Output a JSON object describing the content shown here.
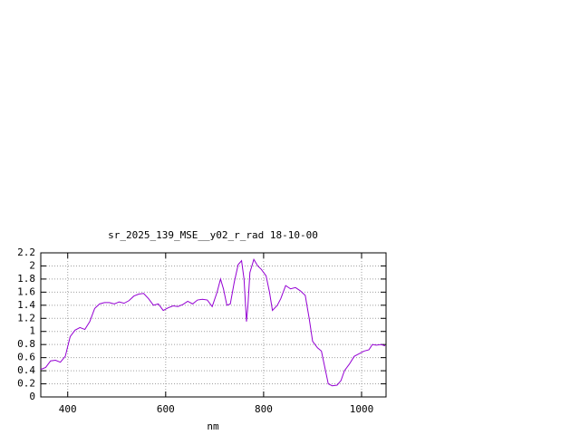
{
  "chart_data": {
    "type": "line",
    "title": "sr_2025_139_MSE__y02_r_rad 18-10-00",
    "x_label": "nm",
    "color": "#9400d3",
    "grid": true,
    "xlim": [
      345,
      1050
    ],
    "ylim": [
      0,
      2.2
    ],
    "xticks": [
      400,
      600,
      800,
      1000
    ],
    "yticks": [
      0,
      0.2,
      0.4,
      0.6,
      0.8,
      1,
      1.2,
      1.4,
      1.6,
      1.8,
      2,
      2.2
    ],
    "x": [
      345,
      355,
      365,
      375,
      385,
      395,
      405,
      415,
      425,
      435,
      445,
      455,
      465,
      475,
      485,
      495,
      505,
      515,
      525,
      535,
      545,
      555,
      565,
      575,
      585,
      595,
      605,
      615,
      625,
      635,
      645,
      655,
      665,
      675,
      685,
      695,
      705,
      712,
      718,
      725,
      732,
      740,
      748,
      755,
      760,
      765,
      768,
      772,
      780,
      788,
      795,
      805,
      812,
      818,
      828,
      835,
      845,
      855,
      865,
      875,
      885,
      893,
      900,
      910,
      918,
      925,
      932,
      940,
      950,
      958,
      965,
      975,
      985,
      995,
      1005,
      1015,
      1022,
      1030,
      1040,
      1048
    ],
    "values": [
      0.42,
      0.45,
      0.55,
      0.56,
      0.53,
      0.62,
      0.92,
      1.02,
      1.06,
      1.03,
      1.15,
      1.35,
      1.42,
      1.44,
      1.44,
      1.42,
      1.45,
      1.43,
      1.47,
      1.54,
      1.57,
      1.58,
      1.5,
      1.4,
      1.42,
      1.32,
      1.36,
      1.39,
      1.38,
      1.41,
      1.46,
      1.42,
      1.48,
      1.49,
      1.48,
      1.38,
      1.6,
      1.8,
      1.65,
      1.4,
      1.42,
      1.75,
      2.02,
      2.08,
      1.8,
      1.15,
      1.4,
      1.9,
      2.1,
      2.0,
      1.95,
      1.85,
      1.6,
      1.32,
      1.4,
      1.5,
      1.7,
      1.65,
      1.67,
      1.62,
      1.55,
      1.2,
      0.85,
      0.75,
      0.7,
      0.45,
      0.2,
      0.17,
      0.18,
      0.25,
      0.4,
      0.5,
      0.62,
      0.66,
      0.7,
      0.72,
      0.8,
      0.79,
      0.8,
      0.78
    ]
  }
}
